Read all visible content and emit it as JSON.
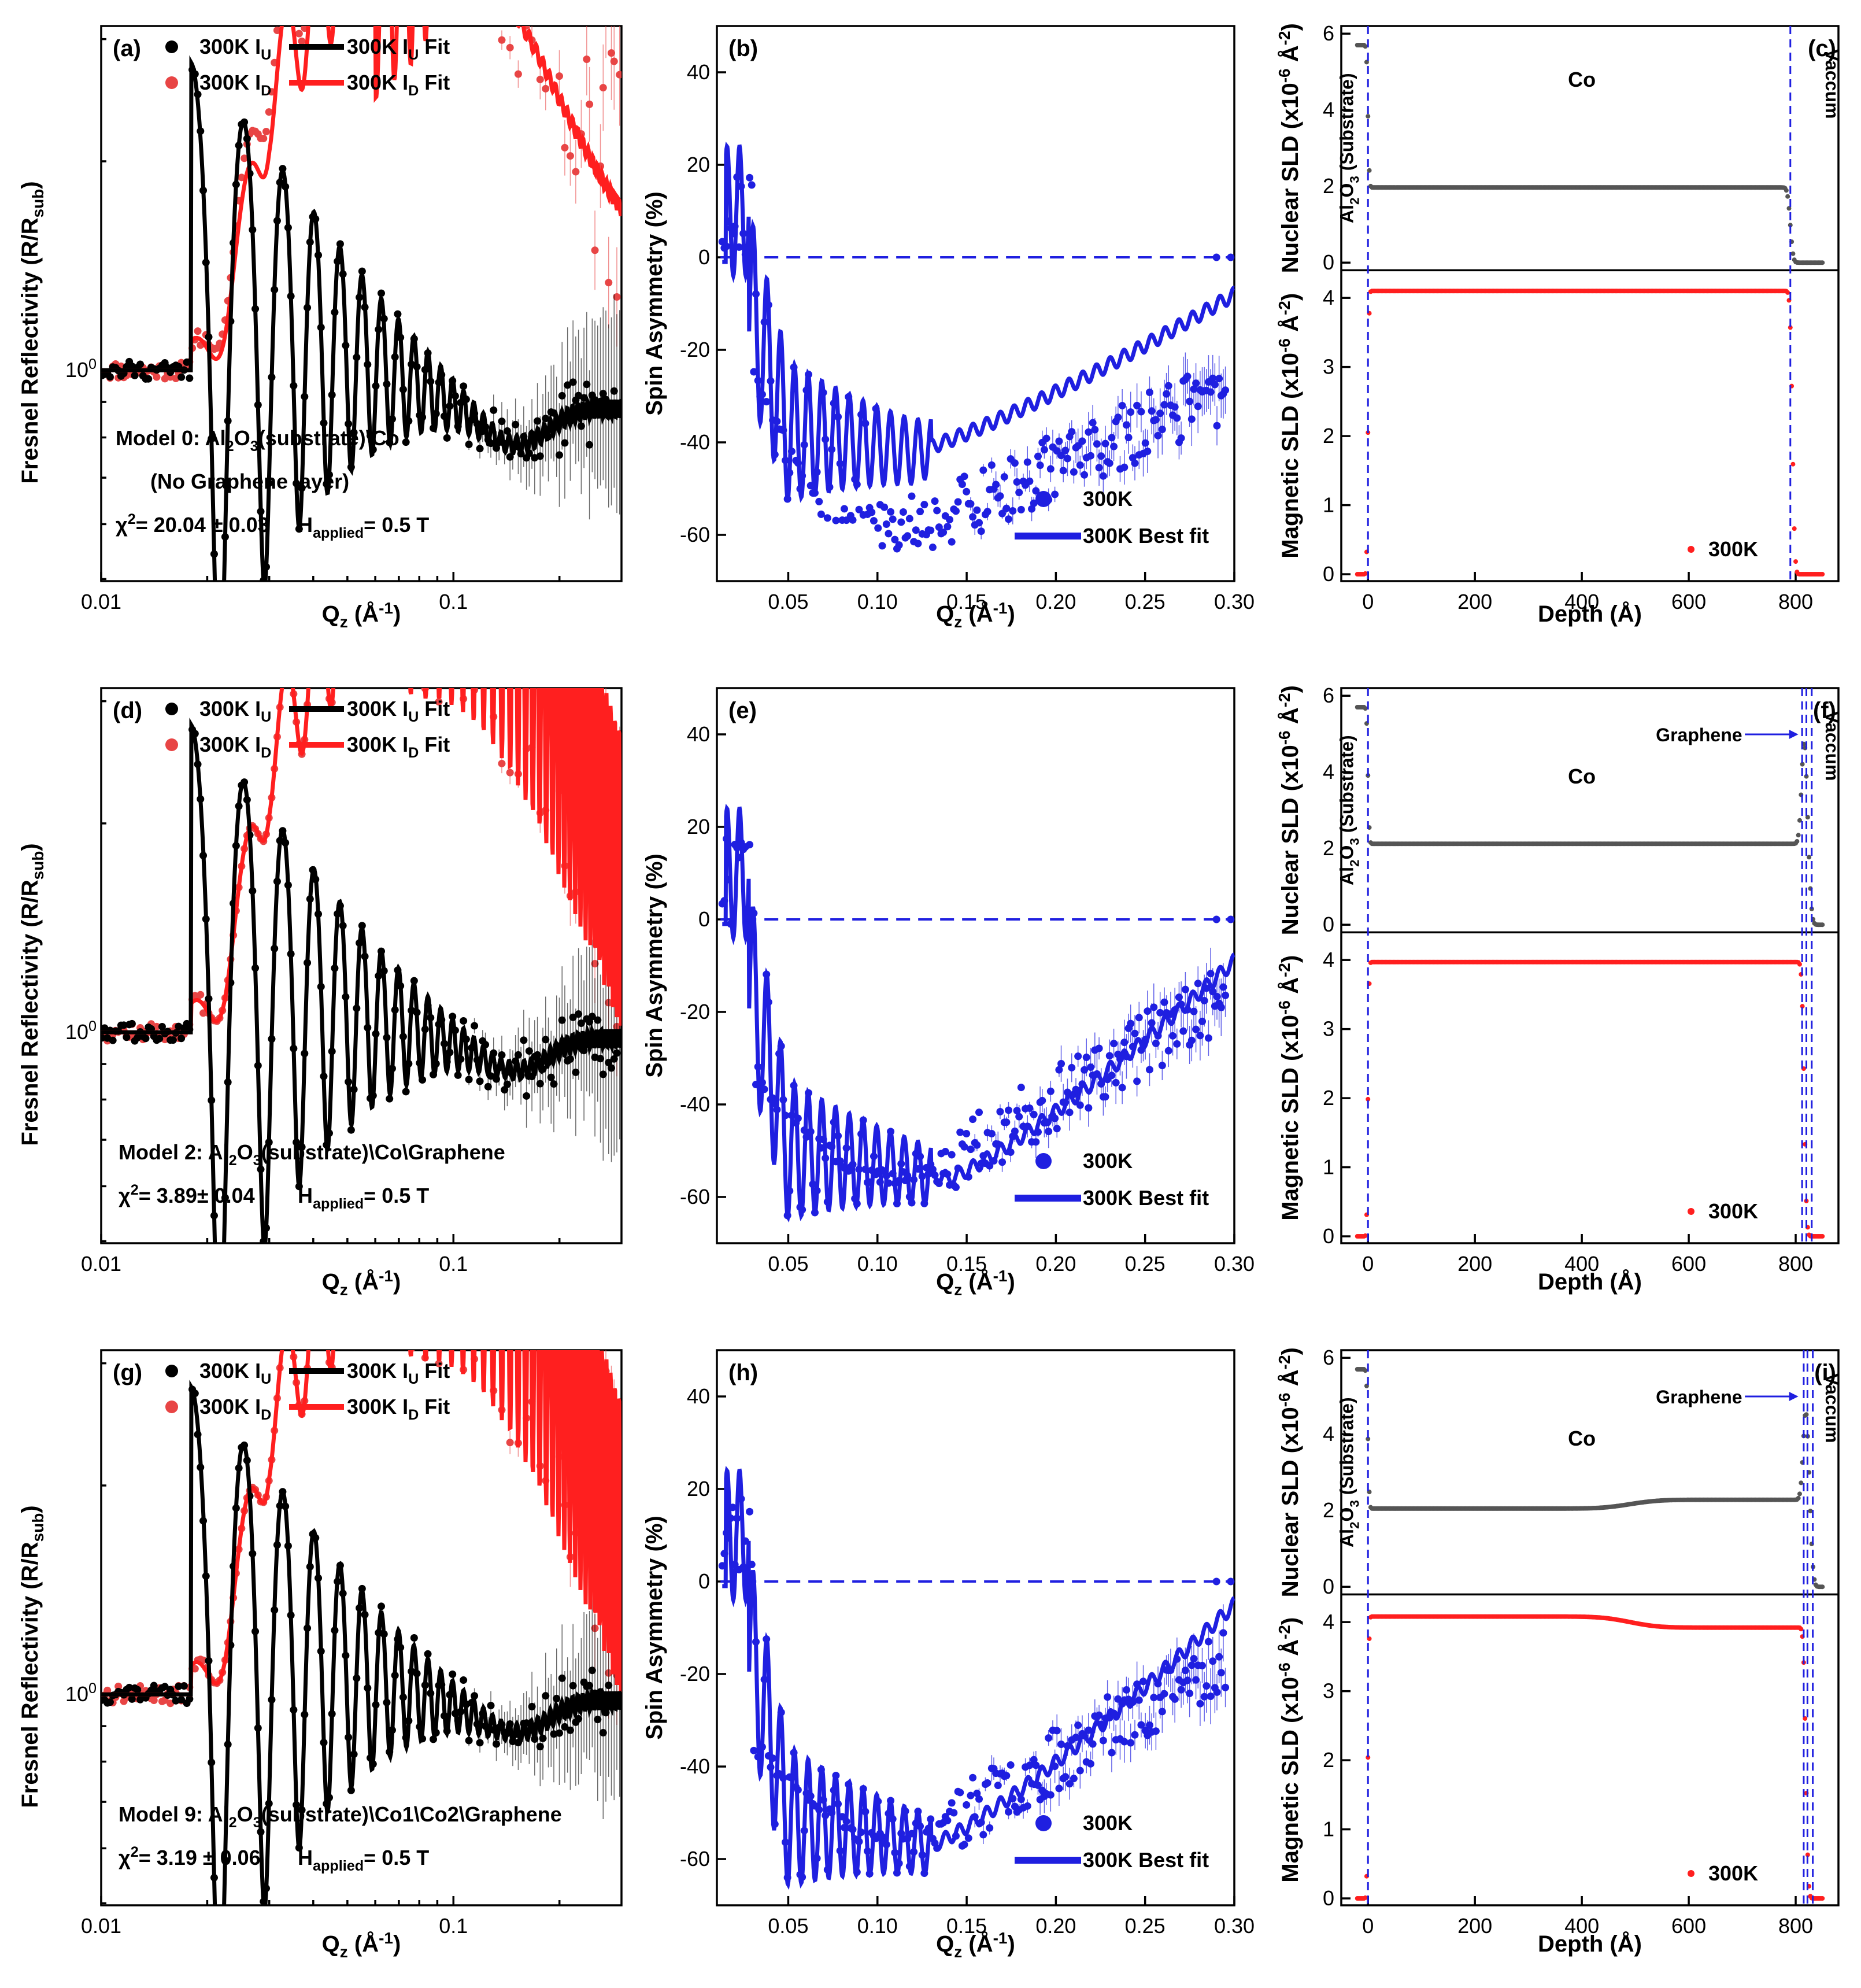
{
  "colors": {
    "black": "#000000",
    "red": "#ff1f1f",
    "red_pts": "#e84545",
    "blue": "#1f1fe0",
    "gray": "#555555"
  },
  "chart_data": [
    {
      "id": "a",
      "type": "line",
      "panel_label": "(a)",
      "xlabel": "Q_z (Å⁻¹)",
      "ylabel": "Fresnel Reflectivity (R/R_sub)",
      "xscale": "log",
      "yscale": "log",
      "xlim": [
        0.01,
        0.3
      ],
      "xticks": [
        {
          "v": 0.01,
          "label": "0.01"
        },
        {
          "v": 0.1,
          "label": "0.1"
        }
      ],
      "yticks": [
        {
          "v": 1,
          "label": "10⁰"
        }
      ],
      "legend": [
        "300K I_U",
        "300K I_U Fit",
        "300K I_D",
        "300K I_D Fit"
      ],
      "series": [
        {
          "name": "300K I_U",
          "kind": "points",
          "color": "black"
        },
        {
          "name": "300K I_U Fit",
          "kind": "line",
          "color": "black"
        },
        {
          "name": "300K I_D",
          "kind": "points",
          "color": "red"
        },
        {
          "name": "300K I_D Fit",
          "kind": "line",
          "color": "red"
        }
      ],
      "model_note": "Model 0: Al₂O₃(substrate)\\Co",
      "model_note2": "(No Graphene layer)",
      "chi2": "χ²= 20.04 ± 0.03",
      "field": "H_applied= 0.5 T"
    },
    {
      "id": "b",
      "type": "scatter",
      "panel_label": "(b)",
      "xlabel": "Q_z (Å⁻¹)",
      "ylabel": "Spin Asymmetry (%)",
      "xlim": [
        0.01,
        0.3
      ],
      "ylim": [
        -70,
        50
      ],
      "xticks": [
        0.05,
        0.1,
        0.15,
        0.2,
        0.25,
        0.3
      ],
      "xtick_labels": [
        "0.05",
        "0.10",
        "0.15",
        "0.20",
        "0.25",
        "0.30"
      ],
      "yticks": [
        -60,
        -40,
        -20,
        0,
        20,
        40
      ],
      "ytick_labels": [
        "-60",
        "-40",
        "-20",
        "0",
        "20",
        "40"
      ],
      "legend": [
        "300K",
        "300K Best fit"
      ],
      "series": [
        {
          "name": "300K",
          "kind": "points",
          "color": "blue",
          "approx_minimum": [
            0.1,
            -57
          ]
        },
        {
          "name": "300K Best fit",
          "kind": "line",
          "color": "blue",
          "approx_minimum": [
            0.12,
            -42
          ],
          "end_value": -8
        }
      ]
    },
    {
      "id": "c",
      "type": "line",
      "panel_label": "(c)",
      "xlabel": "Depth (Å)",
      "xlim": [
        -50,
        880
      ],
      "xticks": [
        0,
        200,
        400,
        600,
        800
      ],
      "xtick_labels": [
        "0",
        "200",
        "400",
        "600",
        "800"
      ],
      "top": {
        "ylabel": "Nuclear SLD (x10⁻⁶ Å⁻²)",
        "ylim": [
          -0.2,
          6.2
        ],
        "yticks": [
          0,
          2,
          4,
          6
        ],
        "ytick_labels": [
          "0",
          "2",
          "4",
          "6"
        ]
      },
      "bottom": {
        "ylabel": "Magnetic SLD (x10⁻⁶ Å⁻²)",
        "ylim": [
          -0.1,
          4.4
        ],
        "yticks": [
          0,
          1,
          2,
          3,
          4
        ],
        "ytick_labels": [
          "0",
          "1",
          "2",
          "3",
          "4"
        ]
      },
      "interfaces": [
        0,
        790
      ],
      "nuclear_profile": {
        "substrate": 5.7,
        "co": 1.97,
        "vacuum": 0,
        "co_end": 790
      },
      "magnetic_profile": {
        "co": 4.1,
        "co_end": 790
      },
      "labels": {
        "substrate": "Al₂O₃ (Substrate)",
        "co": "Co",
        "vacuum": "Vaccum"
      },
      "legend": "300K"
    },
    {
      "id": "d",
      "type": "line",
      "panel_label": "(d)",
      "xlabel": "Q_z (Å⁻¹)",
      "ylabel": "Fresnel Reflectivity (R/R_sub)",
      "xscale": "log",
      "yscale": "log",
      "xlim": [
        0.01,
        0.3
      ],
      "xticks": [
        {
          "v": 0.01,
          "label": "0.01"
        },
        {
          "v": 0.1,
          "label": "0.1"
        }
      ],
      "yticks": [
        {
          "v": 1,
          "label": "10⁰"
        }
      ],
      "legend": [
        "300K I_U",
        "300K I_U Fit",
        "300K I_D",
        "300K I_D Fit"
      ],
      "series": [
        {
          "name": "300K I_U",
          "kind": "points",
          "color": "black"
        },
        {
          "name": "300K I_U Fit",
          "kind": "line",
          "color": "black"
        },
        {
          "name": "300K I_D",
          "kind": "points",
          "color": "red"
        },
        {
          "name": "300K I_D Fit",
          "kind": "line",
          "color": "red"
        }
      ],
      "model_note": "Model 2: Al₂O₃(substrate)\\Co\\Graphene",
      "chi2": "χ²=  3.89± 0.04",
      "field": "H_applied= 0.5 T"
    },
    {
      "id": "e",
      "type": "scatter",
      "panel_label": "(e)",
      "xlabel": "Q_z (Å⁻¹)",
      "ylabel": "Spin Asymmetry (%)",
      "xlim": [
        0.01,
        0.3
      ],
      "ylim": [
        -70,
        50
      ],
      "xticks": [
        0.05,
        0.1,
        0.15,
        0.2,
        0.25,
        0.3
      ],
      "xtick_labels": [
        "0.05",
        "0.10",
        "0.15",
        "0.20",
        "0.25",
        "0.30"
      ],
      "yticks": [
        -60,
        -40,
        -20,
        0,
        20,
        40
      ],
      "ytick_labels": [
        "-60",
        "-40",
        "-20",
        "0",
        "20",
        "40"
      ],
      "legend": [
        "300K",
        "300K Best fit"
      ],
      "series": [
        {
          "name": "300K",
          "kind": "points",
          "color": "blue",
          "approx_minimum": [
            0.12,
            -57
          ]
        },
        {
          "name": "300K Best fit",
          "kind": "line",
          "color": "blue",
          "approx_minimum": [
            0.14,
            -56
          ],
          "end_value": -9
        }
      ]
    },
    {
      "id": "f",
      "type": "line",
      "panel_label": "(f)",
      "xlabel": "Depth (Å)",
      "xlim": [
        -50,
        880
      ],
      "xticks": [
        0,
        200,
        400,
        600,
        800
      ],
      "xtick_labels": [
        "0",
        "200",
        "400",
        "600",
        "800"
      ],
      "top": {
        "ylabel": "Nuclear SLD (x10⁻⁶ Å⁻²)",
        "ylim": [
          -0.2,
          6.2
        ],
        "yticks": [
          0,
          2,
          4,
          6
        ],
        "ytick_labels": [
          "0",
          "2",
          "4",
          "6"
        ]
      },
      "bottom": {
        "ylabel": "Magnetic SLD (x10⁻⁶ Å⁻²)",
        "ylim": [
          -0.1,
          4.4
        ],
        "yticks": [
          0,
          1,
          2,
          3,
          4
        ],
        "ytick_labels": [
          "0",
          "1",
          "2",
          "3",
          "4"
        ]
      },
      "interfaces": [
        0,
        812,
        820,
        830
      ],
      "nuclear_profile": {
        "substrate": 5.7,
        "co": 2.12,
        "graphene_peak": 4.8,
        "vacuum": 0,
        "co_end": 812
      },
      "magnetic_profile": {
        "co": 3.97,
        "co_end": 812
      },
      "labels": {
        "substrate": "Al₂O₃ (Substrate)",
        "co": "Co",
        "vacuum": "Vaccum",
        "graphene": "Graphene"
      },
      "legend": "300K"
    },
    {
      "id": "g",
      "type": "line",
      "panel_label": "(g)",
      "xlabel": "Q_z (Å⁻¹)",
      "ylabel": "Fresnel Reflectivity (R/R_sub)",
      "xscale": "log",
      "yscale": "log",
      "xlim": [
        0.01,
        0.3
      ],
      "xticks": [
        {
          "v": 0.01,
          "label": "0.01"
        },
        {
          "v": 0.1,
          "label": "0.1"
        }
      ],
      "yticks": [
        {
          "v": 1,
          "label": "10⁰"
        }
      ],
      "legend": [
        "300K I_U",
        "300K I_U Fit",
        "300K I_D",
        "300K I_D Fit"
      ],
      "series": [
        {
          "name": "300K I_U",
          "kind": "points",
          "color": "black"
        },
        {
          "name": "300K I_U Fit",
          "kind": "line",
          "color": "black"
        },
        {
          "name": "300K I_D",
          "kind": "points",
          "color": "red"
        },
        {
          "name": "300K I_D Fit",
          "kind": "line",
          "color": "red"
        }
      ],
      "model_note": "Model 9: Al₂O₃(substrate)\\Co1\\Co2\\Graphene",
      "chi2": "χ²=  3.19 ±  0.06",
      "field": "H_applied= 0.5 T"
    },
    {
      "id": "h",
      "type": "scatter",
      "panel_label": "(h)",
      "xlabel": "Q_z (Å⁻¹)",
      "ylabel": "Spin Asymmetry (%)",
      "xlim": [
        0.01,
        0.3
      ],
      "ylim": [
        -70,
        50
      ],
      "xticks": [
        0.05,
        0.1,
        0.15,
        0.2,
        0.25,
        0.3
      ],
      "xtick_labels": [
        "0.05",
        "0.10",
        "0.15",
        "0.20",
        "0.25",
        "0.30"
      ],
      "yticks": [
        -60,
        -40,
        -20,
        0,
        20,
        40
      ],
      "ytick_labels": [
        "-60",
        "-40",
        "-20",
        "0",
        "20",
        "40"
      ],
      "legend": [
        "300K",
        "300K Best fit"
      ],
      "series": [
        {
          "name": "300K",
          "kind": "points",
          "color": "blue",
          "approx_minimum": [
            0.12,
            -57
          ]
        },
        {
          "name": "300K Best fit",
          "kind": "line",
          "color": "blue",
          "approx_minimum": [
            0.13,
            -57
          ],
          "end_value": -5
        }
      ]
    },
    {
      "id": "i",
      "type": "line",
      "panel_label": "(i)",
      "xlabel": "Depth (Å)",
      "xlim": [
        -50,
        880
      ],
      "xticks": [
        0,
        200,
        400,
        600,
        800
      ],
      "xtick_labels": [
        "0",
        "200",
        "400",
        "600",
        "800"
      ],
      "top": {
        "ylabel": "Nuclear SLD (x10⁻⁶ Å⁻²)",
        "ylim": [
          -0.2,
          6.2
        ],
        "yticks": [
          0,
          2,
          4,
          6
        ],
        "ytick_labels": [
          "0",
          "2",
          "4",
          "6"
        ]
      },
      "bottom": {
        "ylabel": "Magnetic SLD (x10⁻⁶ Å⁻²)",
        "ylim": [
          -0.1,
          4.4
        ],
        "yticks": [
          0,
          1,
          2,
          3,
          4
        ],
        "ytick_labels": [
          "0",
          "1",
          "2",
          "3",
          "4"
        ]
      },
      "interfaces": [
        0,
        815,
        822,
        832
      ],
      "nuclear_profile": {
        "substrate": 5.7,
        "co1": 2.05,
        "co2": 2.28,
        "co_step_center": 490,
        "graphene_peak": 4.6,
        "vacuum": 0,
        "co_end": 815
      },
      "magnetic_profile": {
        "co1": 4.08,
        "co2": 3.92,
        "co_step_center": 490,
        "co_end": 815
      },
      "labels": {
        "substrate": "Al₂O₃ (Substrate)",
        "co": "Co",
        "vacuum": "Vaccum",
        "graphene": "Graphene"
      },
      "legend": "300K"
    }
  ]
}
